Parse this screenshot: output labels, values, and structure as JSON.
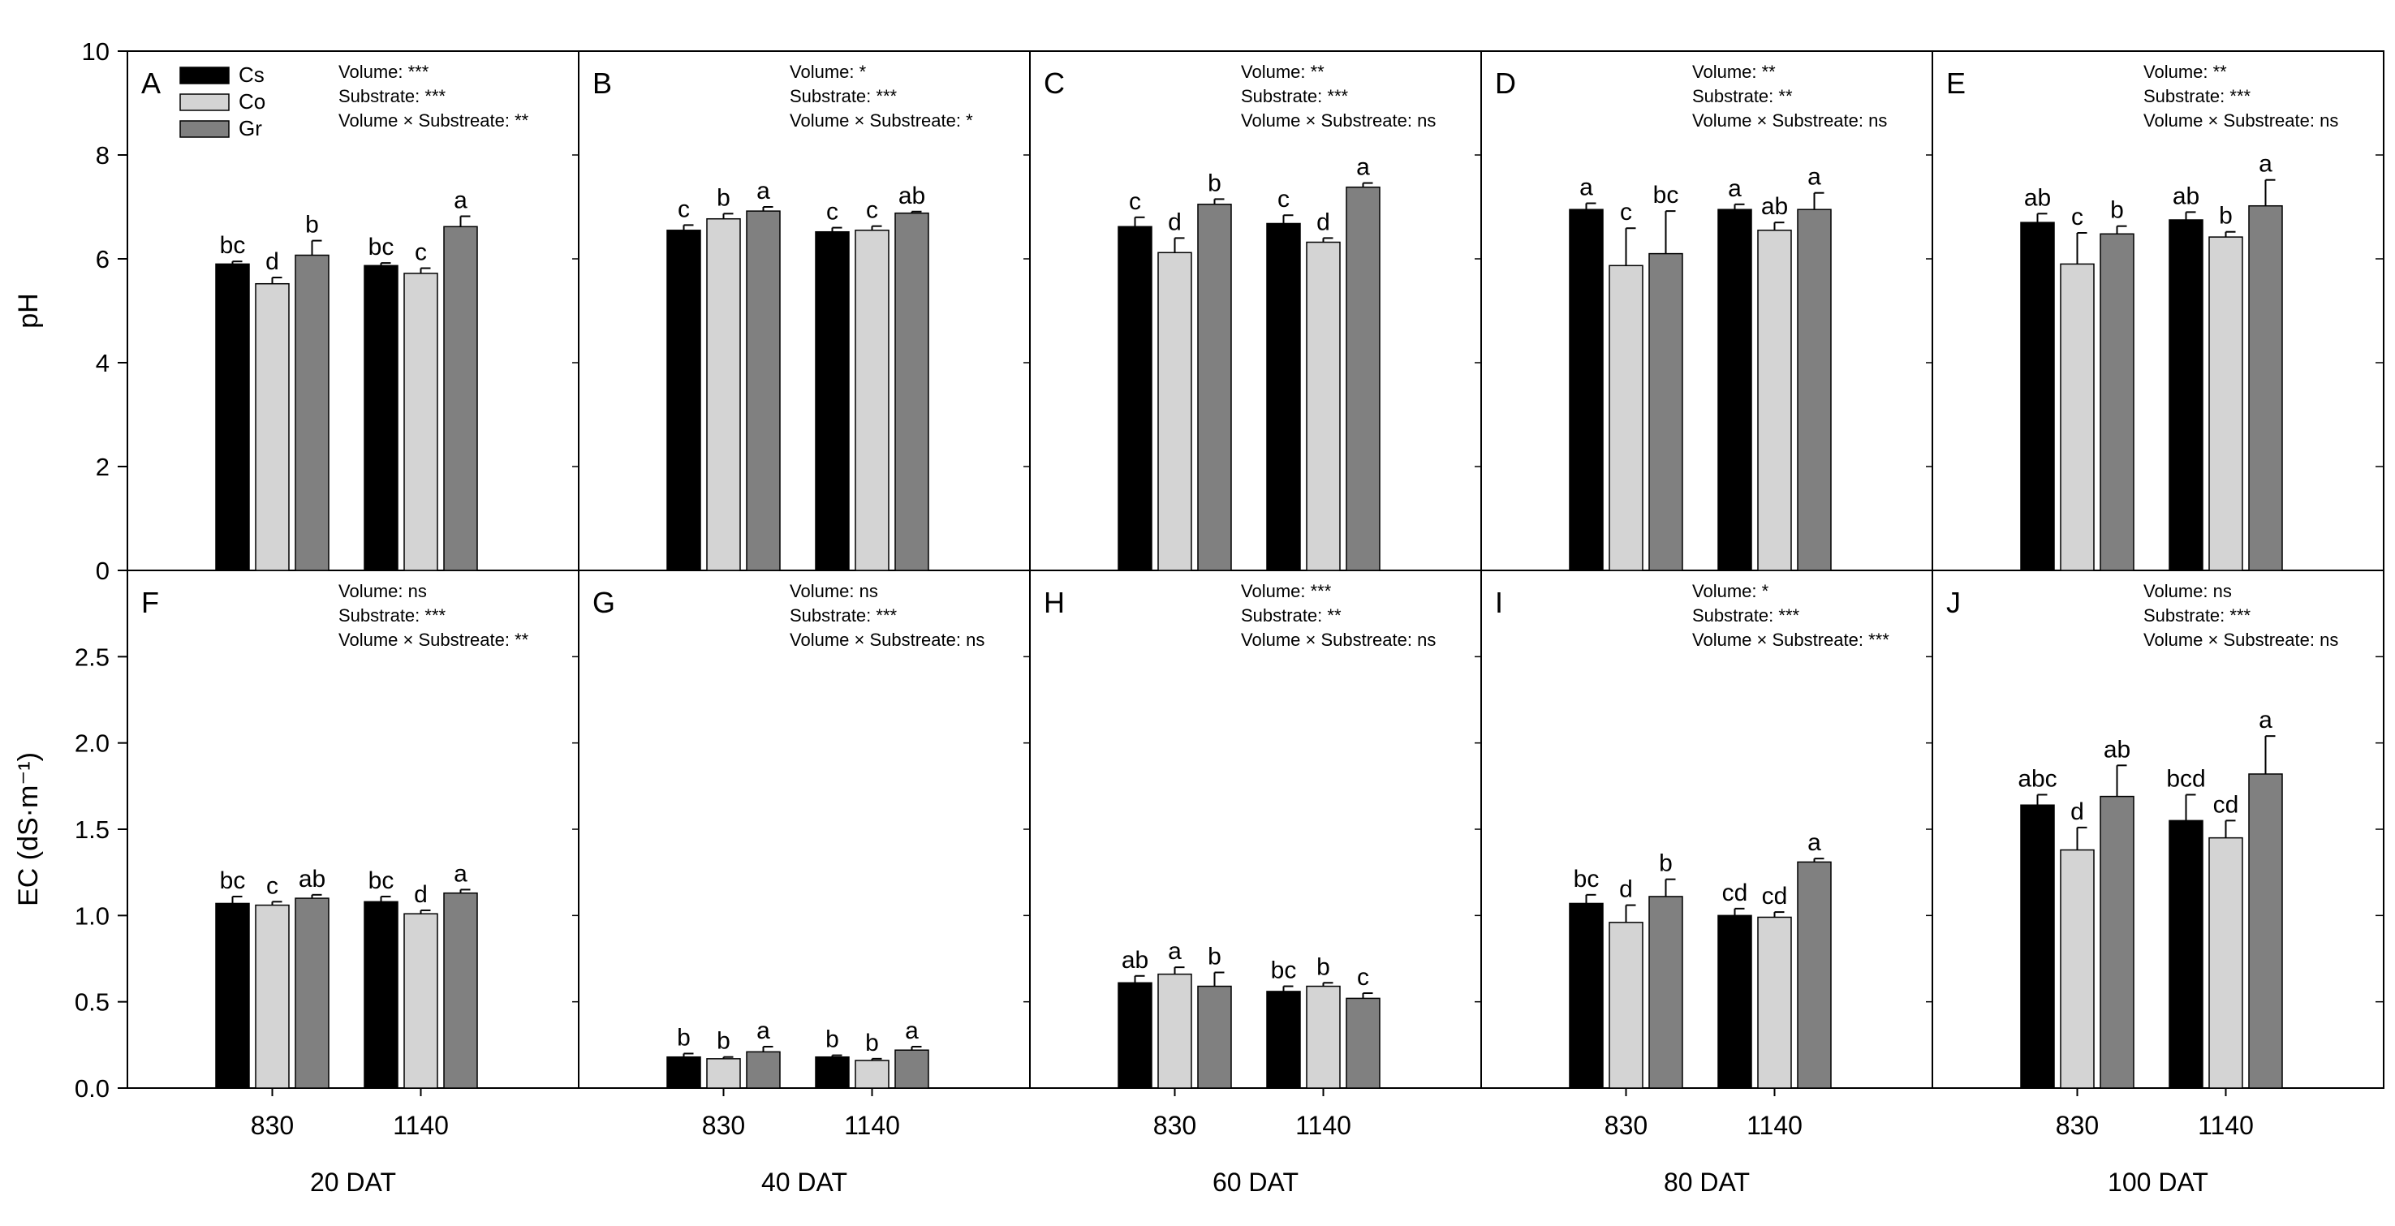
{
  "figure": {
    "y_axis_labels": [
      "pH",
      "EC (dS·m⁻¹)"
    ],
    "x_tick_labels": [
      "830",
      "1140"
    ],
    "legend": [
      {
        "name": "Cs",
        "color": "#000000"
      },
      {
        "name": "Co",
        "color": "#d4d4d4"
      },
      {
        "name": "Gr",
        "color": "#808080"
      }
    ],
    "dat_labels": [
      "20 DAT",
      "40 DAT",
      "60 DAT",
      "80 DAT",
      "100 DAT"
    ],
    "rows": [
      {
        "yticks": [
          "0",
          "2",
          "4",
          "6",
          "8",
          "10"
        ]
      },
      {
        "yticks": [
          "0.0",
          "0.5",
          "1.0",
          "1.5",
          "2.0",
          "2.5"
        ]
      }
    ]
  },
  "chart_data": [
    {
      "panel": "A",
      "type": "bar",
      "ylabel": "pH",
      "ylim": [
        0,
        10
      ],
      "xlabel": "20 DAT",
      "categories": [
        "830",
        "1140"
      ],
      "stats": [
        "Volume: ***",
        "Substrate: ***",
        "Volume × Substreate: **"
      ],
      "series": [
        {
          "name": "Cs",
          "values": [
            5.9,
            5.87
          ],
          "errors": [
            0.05,
            0.05
          ],
          "letters": [
            "bc",
            "bc"
          ]
        },
        {
          "name": "Co",
          "values": [
            5.52,
            5.72
          ],
          "errors": [
            0.12,
            0.1
          ],
          "letters": [
            "d",
            "c"
          ]
        },
        {
          "name": "Gr",
          "values": [
            6.07,
            6.62
          ],
          "errors": [
            0.28,
            0.2
          ],
          "letters": [
            "b",
            "a"
          ]
        }
      ]
    },
    {
      "panel": "B",
      "type": "bar",
      "ylabel": "pH",
      "ylim": [
        0,
        10
      ],
      "xlabel": "40 DAT",
      "categories": [
        "830",
        "1140"
      ],
      "stats": [
        "Volume: *",
        "Substrate: ***",
        "Volume × Substreate: *"
      ],
      "series": [
        {
          "name": "Cs",
          "values": [
            6.55,
            6.52
          ],
          "errors": [
            0.1,
            0.08
          ],
          "letters": [
            "c",
            "c"
          ]
        },
        {
          "name": "Co",
          "values": [
            6.77,
            6.55
          ],
          "errors": [
            0.1,
            0.08
          ],
          "letters": [
            "b",
            "c"
          ]
        },
        {
          "name": "Gr",
          "values": [
            6.92,
            6.88
          ],
          "errors": [
            0.08,
            0.03
          ],
          "letters": [
            "a",
            "ab"
          ]
        }
      ]
    },
    {
      "panel": "C",
      "type": "bar",
      "ylabel": "pH",
      "ylim": [
        0,
        10
      ],
      "xlabel": "60 DAT",
      "categories": [
        "830",
        "1140"
      ],
      "stats": [
        "Volume: **",
        "Substrate: ***",
        "Volume × Substreate: ns"
      ],
      "series": [
        {
          "name": "Cs",
          "values": [
            6.62,
            6.68
          ],
          "errors": [
            0.18,
            0.16
          ],
          "letters": [
            "c",
            "c"
          ]
        },
        {
          "name": "Co",
          "values": [
            6.12,
            6.32
          ],
          "errors": [
            0.28,
            0.08
          ],
          "letters": [
            "d",
            "d"
          ]
        },
        {
          "name": "Gr",
          "values": [
            7.05,
            7.38
          ],
          "errors": [
            0.1,
            0.08
          ],
          "letters": [
            "b",
            "a"
          ]
        }
      ]
    },
    {
      "panel": "D",
      "type": "bar",
      "ylabel": "pH",
      "ylim": [
        0,
        10
      ],
      "xlabel": "80 DAT",
      "categories": [
        "830",
        "1140"
      ],
      "stats": [
        "Volume: **",
        "Substrate: **",
        "Volume × Substreate: ns"
      ],
      "series": [
        {
          "name": "Cs",
          "values": [
            6.95,
            6.95
          ],
          "errors": [
            0.12,
            0.1
          ],
          "letters": [
            "a",
            "a"
          ]
        },
        {
          "name": "Co",
          "values": [
            5.87,
            6.55
          ],
          "errors": [
            0.72,
            0.15
          ],
          "letters": [
            "c",
            "ab"
          ]
        },
        {
          "name": "Gr",
          "values": [
            6.1,
            6.95
          ],
          "errors": [
            0.82,
            0.32
          ],
          "letters": [
            "bc",
            "a"
          ]
        }
      ]
    },
    {
      "panel": "E",
      "type": "bar",
      "ylabel": "pH",
      "ylim": [
        0,
        10
      ],
      "xlabel": "100 DAT",
      "categories": [
        "830",
        "1140"
      ],
      "stats": [
        "Volume: **",
        "Substrate: ***",
        "Volume × Substreate: ns"
      ],
      "series": [
        {
          "name": "Cs",
          "values": [
            6.7,
            6.75
          ],
          "errors": [
            0.17,
            0.15
          ],
          "letters": [
            "ab",
            "ab"
          ]
        },
        {
          "name": "Co",
          "values": [
            5.9,
            6.42
          ],
          "errors": [
            0.6,
            0.1
          ],
          "letters": [
            "c",
            "b"
          ]
        },
        {
          "name": "Gr",
          "values": [
            6.48,
            7.02
          ],
          "errors": [
            0.15,
            0.5
          ],
          "letters": [
            "b",
            "a"
          ]
        }
      ]
    },
    {
      "panel": "F",
      "type": "bar",
      "ylabel": "EC (dS·m⁻¹)",
      "ylim": [
        0,
        3.0
      ],
      "xlabel": "20 DAT",
      "categories": [
        "830",
        "1140"
      ],
      "stats": [
        "Volume: ns",
        "Substrate: ***",
        "Volume × Substreate: **"
      ],
      "series": [
        {
          "name": "Cs",
          "values": [
            1.07,
            1.08
          ],
          "errors": [
            0.04,
            0.03
          ],
          "letters": [
            "bc",
            "bc"
          ]
        },
        {
          "name": "Co",
          "values": [
            1.06,
            1.01
          ],
          "errors": [
            0.02,
            0.02
          ],
          "letters": [
            "c",
            "d"
          ]
        },
        {
          "name": "Gr",
          "values": [
            1.1,
            1.13
          ],
          "errors": [
            0.02,
            0.02
          ],
          "letters": [
            "ab",
            "a"
          ]
        }
      ]
    },
    {
      "panel": "G",
      "type": "bar",
      "ylabel": "EC (dS·m⁻¹)",
      "ylim": [
        0,
        3.0
      ],
      "xlabel": "40 DAT",
      "categories": [
        "830",
        "1140"
      ],
      "stats": [
        "Volume: ns",
        "Substrate: ***",
        "Volume × Substreate: ns"
      ],
      "series": [
        {
          "name": "Cs",
          "values": [
            0.18,
            0.18
          ],
          "errors": [
            0.02,
            0.01
          ],
          "letters": [
            "b",
            "b"
          ]
        },
        {
          "name": "Co",
          "values": [
            0.17,
            0.16
          ],
          "errors": [
            0.01,
            0.01
          ],
          "letters": [
            "b",
            "b"
          ]
        },
        {
          "name": "Gr",
          "values": [
            0.21,
            0.22
          ],
          "errors": [
            0.03,
            0.02
          ],
          "letters": [
            "a",
            "a"
          ]
        }
      ]
    },
    {
      "panel": "H",
      "type": "bar",
      "ylabel": "EC (dS·m⁻¹)",
      "ylim": [
        0,
        3.0
      ],
      "xlabel": "60 DAT",
      "categories": [
        "830",
        "1140"
      ],
      "stats": [
        "Volume: ***",
        "Substrate: **",
        "Volume × Substreate: ns"
      ],
      "series": [
        {
          "name": "Cs",
          "values": [
            0.61,
            0.56
          ],
          "errors": [
            0.04,
            0.03
          ],
          "letters": [
            "ab",
            "bc"
          ]
        },
        {
          "name": "Co",
          "values": [
            0.66,
            0.59
          ],
          "errors": [
            0.04,
            0.02
          ],
          "letters": [
            "a",
            "b"
          ]
        },
        {
          "name": "Gr",
          "values": [
            0.59,
            0.52
          ],
          "errors": [
            0.08,
            0.03
          ],
          "letters": [
            "b",
            "c"
          ]
        }
      ]
    },
    {
      "panel": "I",
      "type": "bar",
      "ylabel": "EC (dS·m⁻¹)",
      "ylim": [
        0,
        3.0
      ],
      "xlabel": "80 DAT",
      "categories": [
        "830",
        "1140"
      ],
      "stats": [
        "Volume: *",
        "Substrate: ***",
        "Volume × Substreate: ***"
      ],
      "series": [
        {
          "name": "Cs",
          "values": [
            1.07,
            1.0
          ],
          "errors": [
            0.05,
            0.04
          ],
          "letters": [
            "bc",
            "cd"
          ]
        },
        {
          "name": "Co",
          "values": [
            0.96,
            0.99
          ],
          "errors": [
            0.1,
            0.03
          ],
          "letters": [
            "d",
            "cd"
          ]
        },
        {
          "name": "Gr",
          "values": [
            1.11,
            1.31
          ],
          "errors": [
            0.1,
            0.02
          ],
          "letters": [
            "b",
            "a"
          ]
        }
      ]
    },
    {
      "panel": "J",
      "type": "bar",
      "ylabel": "EC (dS·m⁻¹)",
      "ylim": [
        0,
        3.0
      ],
      "xlabel": "100 DAT",
      "categories": [
        "830",
        "1140"
      ],
      "stats": [
        "Volume: ns",
        "Substrate: ***",
        "Volume × Substreate: ns"
      ],
      "series": [
        {
          "name": "Cs",
          "values": [
            1.64,
            1.55
          ],
          "errors": [
            0.06,
            0.15
          ],
          "letters": [
            "abc",
            "bcd"
          ]
        },
        {
          "name": "Co",
          "values": [
            1.38,
            1.45
          ],
          "errors": [
            0.13,
            0.1
          ],
          "letters": [
            "d",
            "cd"
          ]
        },
        {
          "name": "Gr",
          "values": [
            1.69,
            1.82
          ],
          "errors": [
            0.18,
            0.22
          ],
          "letters": [
            "ab",
            "a"
          ]
        }
      ]
    }
  ]
}
